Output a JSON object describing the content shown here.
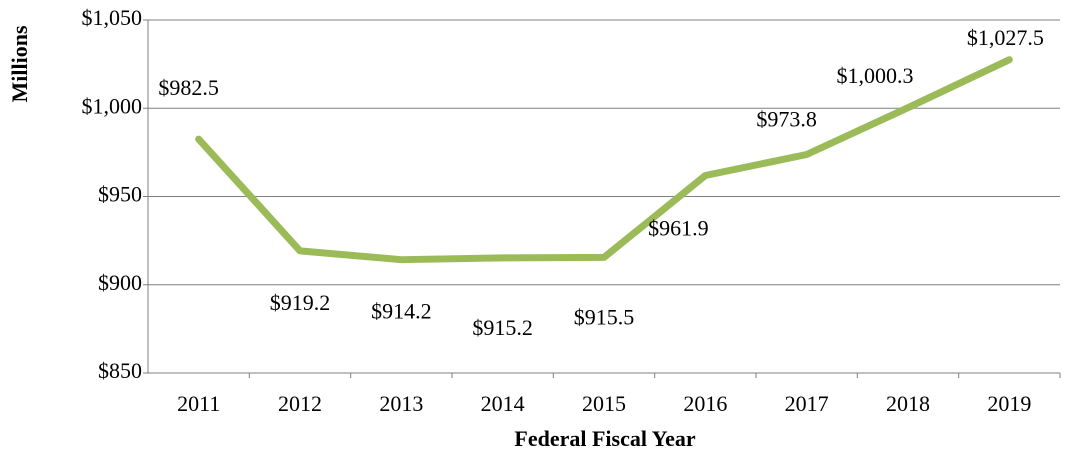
{
  "chart_data": {
    "type": "line",
    "y_label": "Millions",
    "x_label": "Federal Fiscal Year",
    "categories": [
      "2011",
      "2012",
      "2013",
      "2014",
      "2015",
      "2016",
      "2017",
      "2018",
      "2019"
    ],
    "series": [
      {
        "name": "Millions",
        "color": "#9bbb59",
        "values": [
          982.5,
          919.2,
          914.2,
          915.2,
          915.5,
          961.9,
          973.8,
          1000.3,
          1027.5
        ],
        "value_labels": [
          "$982.5",
          "$919.2",
          "$914.2",
          "$915.2",
          "$915.5",
          "$961.9",
          "$973.8",
          "$1,000.3",
          "$1,027.5"
        ]
      }
    ],
    "ylim": [
      850,
      1050
    ],
    "yticks": [
      {
        "value": 850,
        "label": "$850"
      },
      {
        "value": 900,
        "label": "$900"
      },
      {
        "value": 950,
        "label": "$950"
      },
      {
        "value": 1000,
        "label": "$1,000"
      },
      {
        "value": 1050,
        "label": "$1,050"
      }
    ],
    "grid": true
  }
}
